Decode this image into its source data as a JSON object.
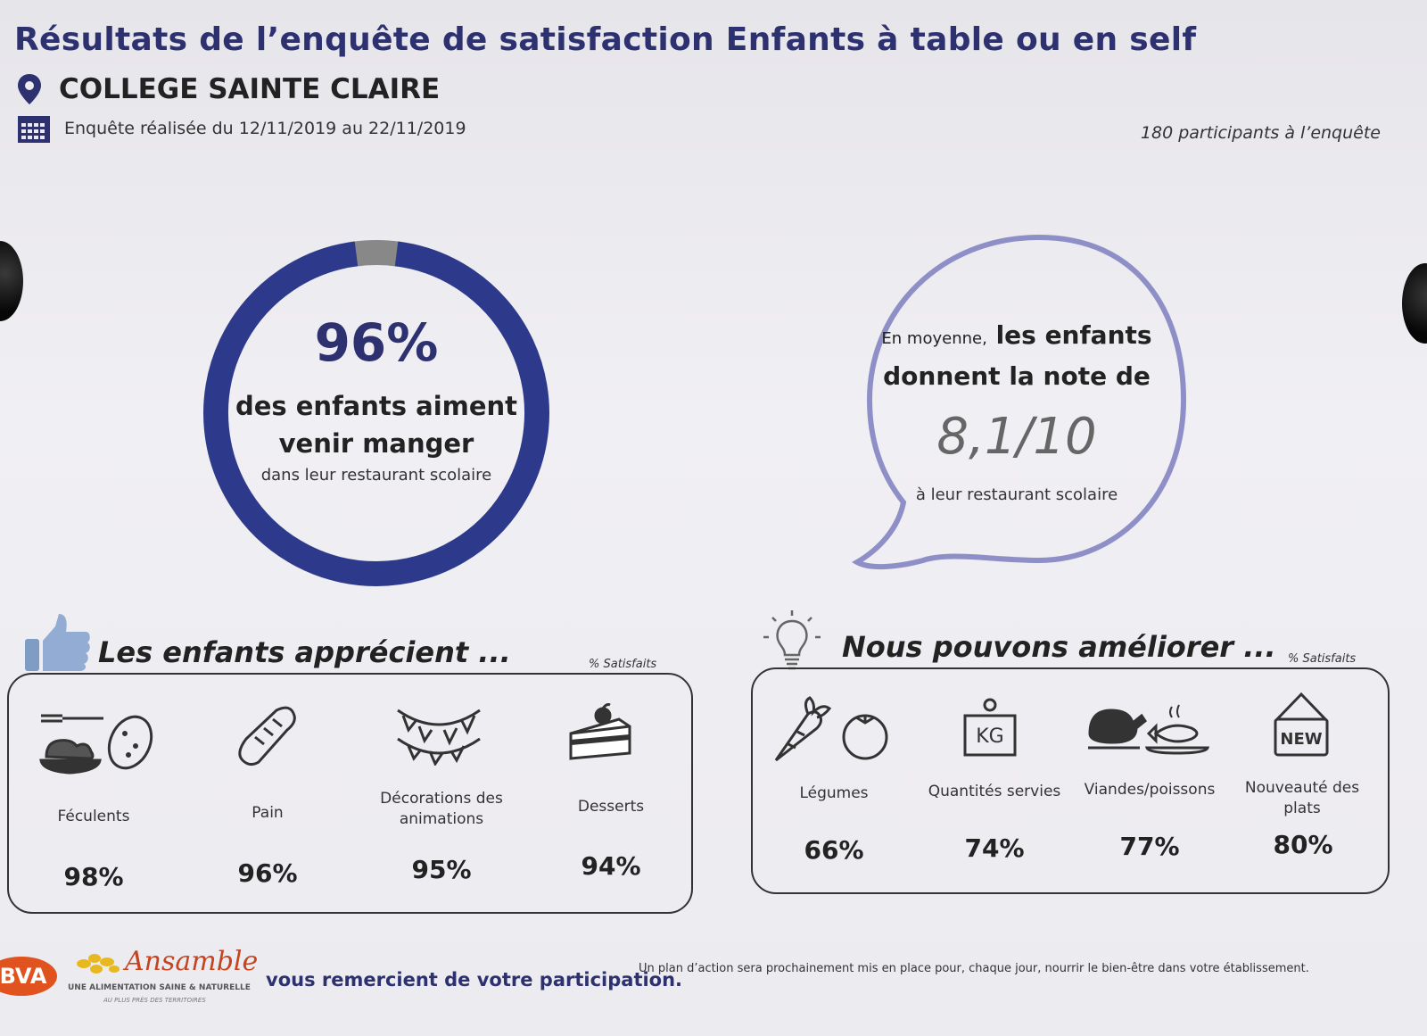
{
  "header": {
    "title": "Résultats de l’enquête de satisfaction Enfants à table ou en self",
    "school": "COLLEGE SAINTE CLAIRE",
    "dates": "Enquête réalisée du 12/11/2019 au 22/11/2019",
    "participants": "180 participants à l’enquête"
  },
  "ring": {
    "percent": "96%",
    "value_fraction": 0.96,
    "line1": "des enfants aiment",
    "line2": "venir manger",
    "line3": "dans leur restaurant scolaire",
    "color": "#2d3a8c",
    "rest_color": "#888888"
  },
  "bubble": {
    "intro": "En moyenne,",
    "bold1": "les enfants",
    "bold2": "donnent la note de",
    "score": "8,1/10",
    "sub": "à leur restaurant scolaire",
    "color": "#8f8fc8"
  },
  "appreciate": {
    "heading": "Les enfants apprécient ...",
    "sat_label": "% Satisfaits",
    "items": [
      {
        "label": "Féculents",
        "pct": "98%",
        "icon": "pasta-potato-icon"
      },
      {
        "label": "Pain",
        "pct": "96%",
        "icon": "bread-icon"
      },
      {
        "label": "Décorations des animations",
        "pct": "95%",
        "icon": "bunting-icon"
      },
      {
        "label": "Desserts",
        "pct": "94%",
        "icon": "cake-icon"
      }
    ]
  },
  "improve": {
    "heading": "Nous pouvons améliorer ...",
    "sat_label": "% Satisfaits",
    "items": [
      {
        "label": "Légumes",
        "pct": "66%",
        "icon": "vegetables-icon"
      },
      {
        "label": "Quantités servies",
        "pct": "74%",
        "icon": "weight-kg-icon"
      },
      {
        "label": "Viandes/poissons",
        "pct": "77%",
        "icon": "meat-fish-icon"
      },
      {
        "label": "Nouveauté des plats",
        "pct": "80%",
        "icon": "new-sign-icon"
      }
    ],
    "kg_text": "KG",
    "new_text": "NEW"
  },
  "footer": {
    "thanks": "vous remercient de votre participation.",
    "note": "Un plan d’action sera prochainement mis en place pour, chaque jour, nourrir le bien-être dans votre établissement.",
    "bva": "BVA",
    "brand": "Ansamble",
    "tagline": "UNE ALIMENTATION SAINE & NATURELLE",
    "subtagline": "AU PLUS PRÈS DES TERRITOIRES"
  }
}
